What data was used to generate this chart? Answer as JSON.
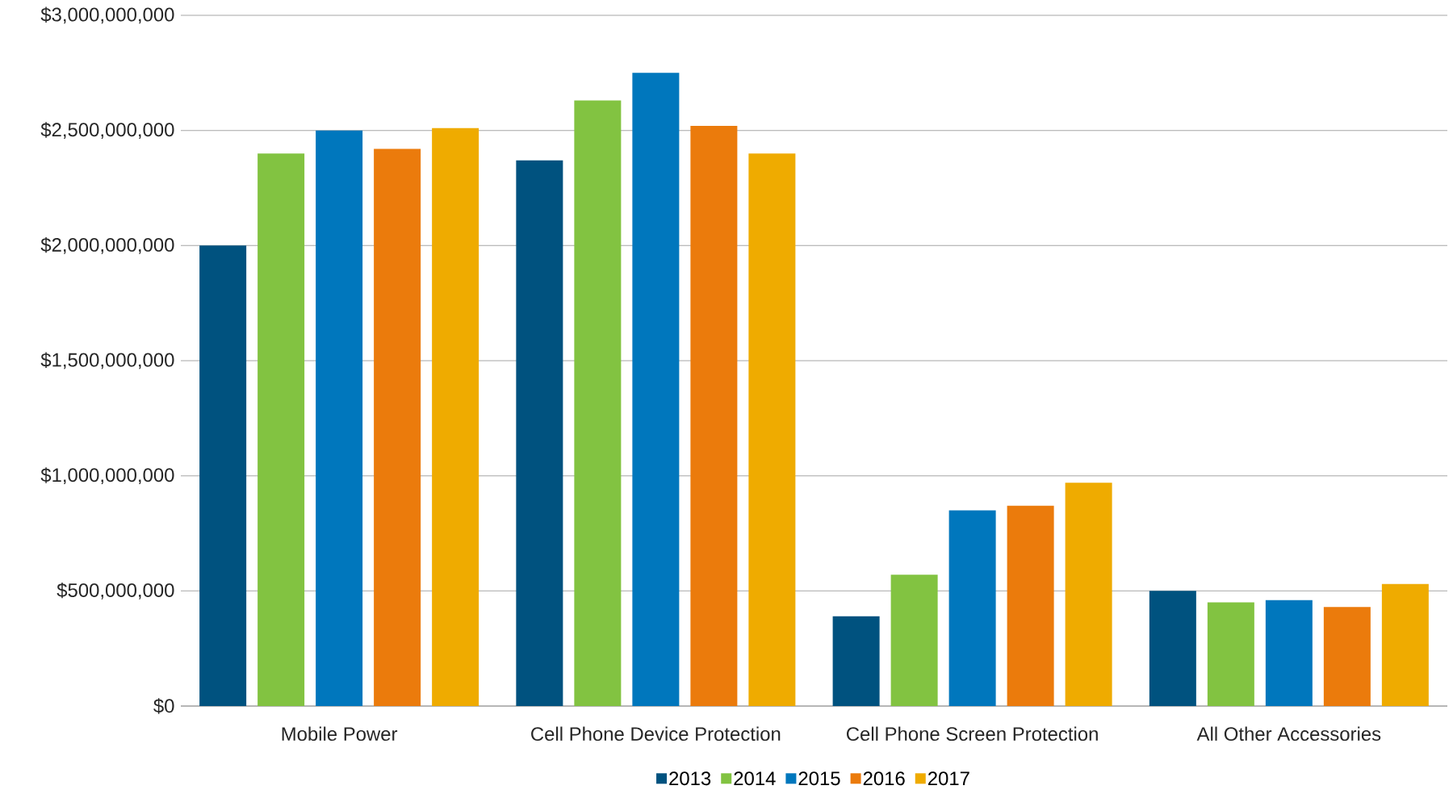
{
  "chart_data": {
    "type": "bar",
    "categories": [
      "Mobile Power",
      "Cell Phone Device Protection",
      "Cell Phone Screen Protection",
      "All Other Accessories"
    ],
    "series": [
      {
        "name": "2013",
        "color": "#00527f",
        "values": [
          2000000000,
          2370000000,
          390000000,
          500000000
        ]
      },
      {
        "name": "2014",
        "color": "#82c341",
        "values": [
          2400000000,
          2630000000,
          570000000,
          450000000
        ]
      },
      {
        "name": "2015",
        "color": "#0077bd",
        "values": [
          2500000000,
          2750000000,
          850000000,
          460000000
        ]
      },
      {
        "name": "2016",
        "color": "#eb7b0c",
        "values": [
          2420000000,
          2520000000,
          870000000,
          430000000
        ]
      },
      {
        "name": "2017",
        "color": "#efab00",
        "values": [
          2510000000,
          2400000000,
          970000000,
          530000000
        ]
      }
    ],
    "ylim": [
      0,
      3000000000
    ],
    "yticks": [
      {
        "value": 0,
        "label": "$0"
      },
      {
        "value": 500000000,
        "label": "$500,000,000"
      },
      {
        "value": 1000000000,
        "label": "$1,000,000,000"
      },
      {
        "value": 1500000000,
        "label": "$1,500,000,000"
      },
      {
        "value": 2000000000,
        "label": "$2,000,000,000"
      },
      {
        "value": 2500000000,
        "label": "$2,500,000,000"
      },
      {
        "value": 3000000000,
        "label": "$3,000,000,000"
      }
    ],
    "grid": "y",
    "legend": "bottom"
  }
}
